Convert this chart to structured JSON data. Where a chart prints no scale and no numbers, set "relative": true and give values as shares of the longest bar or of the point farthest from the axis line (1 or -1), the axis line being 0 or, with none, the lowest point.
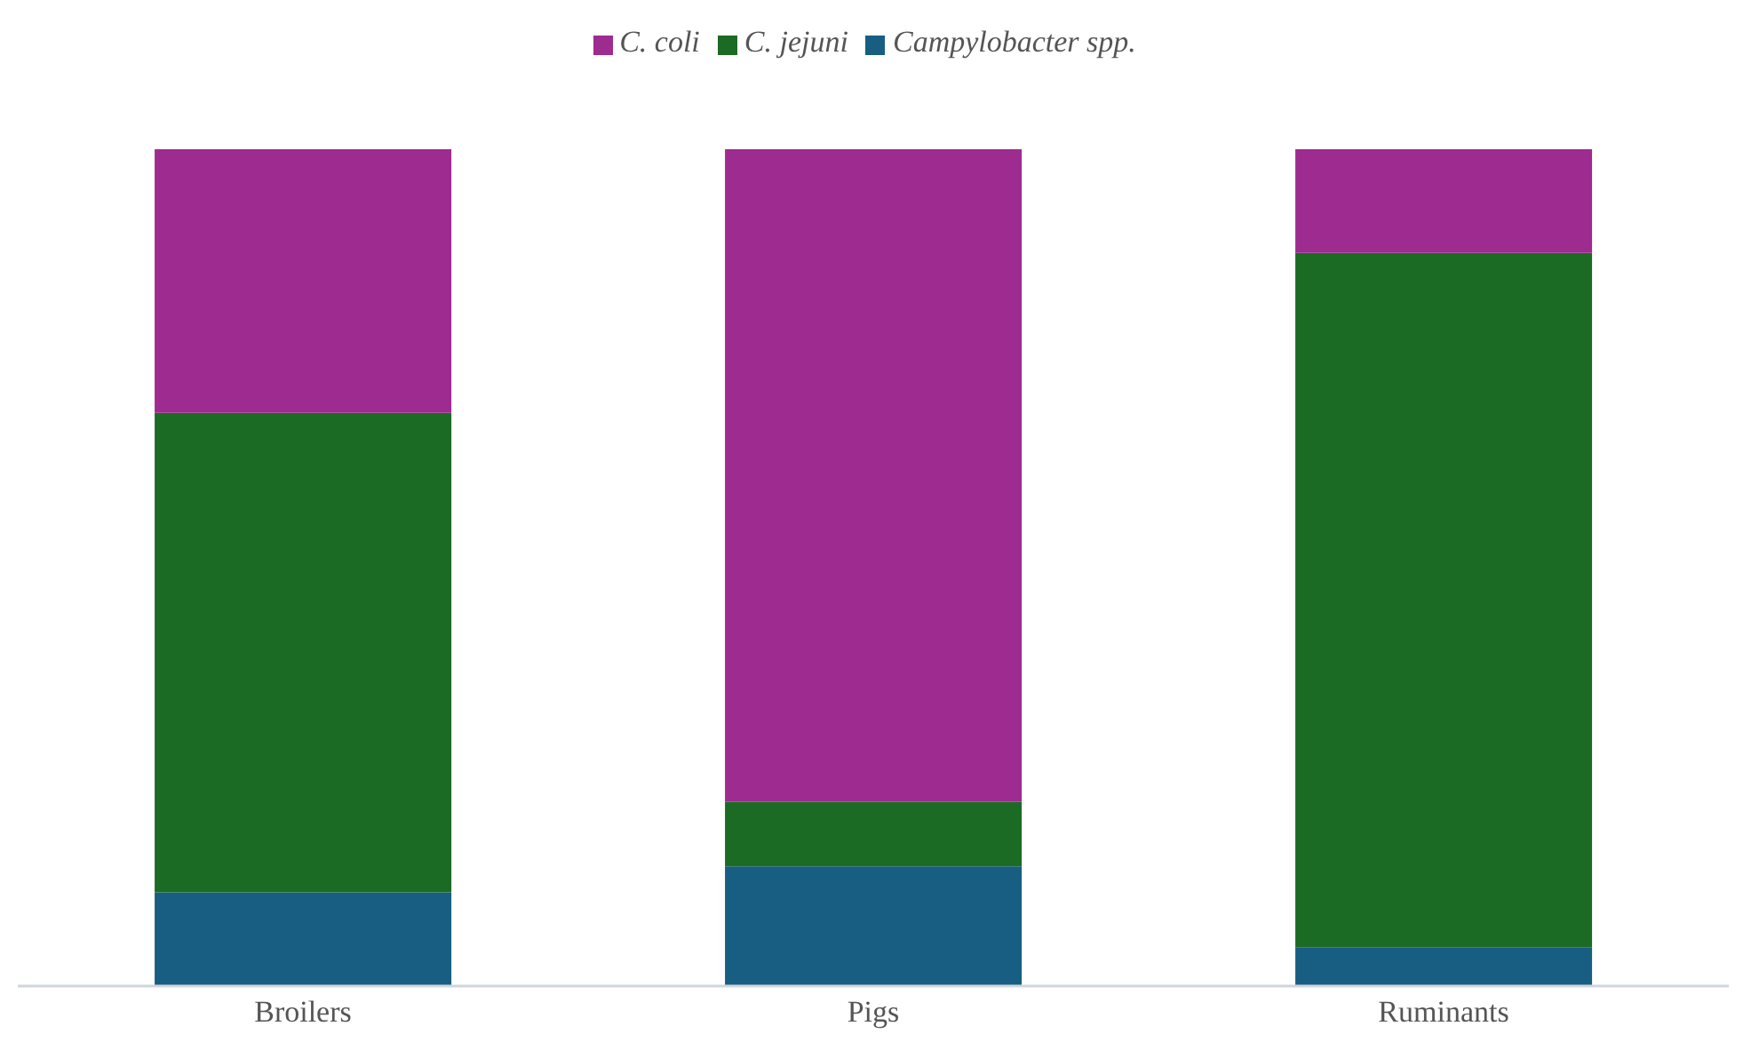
{
  "chart_data": {
    "type": "bar",
    "stacked": true,
    "relative": true,
    "categories": [
      "Broilers",
      "Pigs",
      "Ruminants"
    ],
    "series": [
      {
        "name": "Campylobacter spp.",
        "color": "#175e82",
        "values": [
          0.112,
          0.143,
          0.046
        ]
      },
      {
        "name": "C. jejuni",
        "color": "#1c6b25",
        "values": [
          0.573,
          0.077,
          0.83
        ]
      },
      {
        "name": "C. coli",
        "color": "#9e2b90",
        "values": [
          0.315,
          0.78,
          0.124
        ]
      }
    ],
    "legend": "top",
    "grid": false
  }
}
